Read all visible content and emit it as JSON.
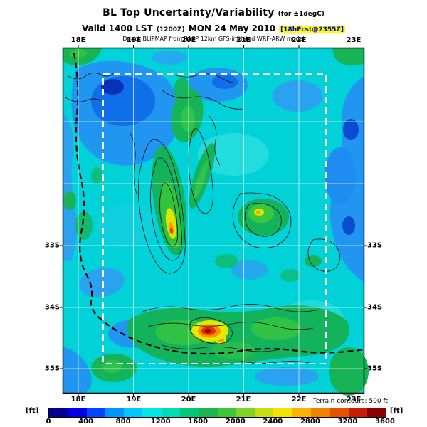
{
  "header": {
    "title": "BL Top Uncertainty/Variability",
    "title_note": "(for ±1degC)",
    "valid_prefix": "Valid 1400 LST",
    "valid_zulu": "(1200Z)",
    "valid_date": "MON 24 May 2010",
    "valid_tag": "[18hFcst@2355Z]",
    "model_line": "DrJack BLIPMAP from RASP 12km GFS-initiated WRF-ARW model"
  },
  "map": {
    "x_ticks_top": [
      "18E",
      "19E",
      "20E",
      "21E",
      "22E",
      "23E"
    ],
    "x_ticks_bottom": [
      "18E",
      "19E",
      "20E",
      "21E",
      "22E",
      "23E"
    ],
    "y_ticks_left": [
      "33S",
      "34S",
      "35S"
    ],
    "y_ticks_right": [
      "33S",
      "34S",
      "35S"
    ]
  },
  "colorbar": {
    "unit_left": "[ft]",
    "unit_right": "[ft]",
    "tick_labels": [
      "0",
      "400",
      "800",
      "1200",
      "1600",
      "2000",
      "2400",
      "2800",
      "3200",
      "3600"
    ],
    "colors": [
      "#000096",
      "#0000e6",
      "#0046ff",
      "#0096ff",
      "#00c8ff",
      "#00e6e6",
      "#00dcb4",
      "#00c878",
      "#1eb450",
      "#3cc83c",
      "#82d228",
      "#c8dc14",
      "#f0e400",
      "#fab400",
      "#f08200",
      "#e65000",
      "#c81e00",
      "#8c0000"
    ]
  },
  "footer": {
    "terrain_note": "Terrain contours: 500 ft"
  },
  "chart_data": {
    "type": "heatmap",
    "title": "BL Top Uncertainty/Variability (for ±1degC)",
    "subtitle": "Valid 1400 LST (1200Z) MON 24 May 2010 [18hFcst@2355Z]",
    "source_model": "DrJack BLIPMAP from RASP 12km GFS-initiated WRF-ARW model",
    "x_axis": {
      "label": "longitude",
      "ticks": [
        "18E",
        "19E",
        "20E",
        "21E",
        "22E",
        "23E"
      ]
    },
    "y_axis": {
      "label": "latitude",
      "ticks": [
        "33S",
        "34S",
        "35S"
      ]
    },
    "value_unit": "ft",
    "value_min": 0,
    "value_max": 3600,
    "colorbar_step_ft": 200,
    "colorbar_label_ticks": [
      0,
      400,
      800,
      1200,
      1600,
      2000,
      2400,
      2800,
      3200,
      3600
    ],
    "legend_position": "bottom",
    "grid": true,
    "overlays": [
      "terrain contours every 500 ft drawn as thin black lines",
      "coastline drawn as heavy dashed black line",
      "model sub-domain drawn as white dashed rectangle"
    ],
    "field_regions": [
      {
        "region": "majority of domain (ocean and flat interior)",
        "approx_value_ft": 800
      },
      {
        "region": "large patch in northwest quadrant, top-center patch, and band along east edge",
        "approx_value_ft": 400
      },
      {
        "region": "small cores inside northwest blue patch and along east edge",
        "approx_value_ft": 100
      },
      {
        "region": "mountain ridge areas: center-left N-S band, center-right blob, southern coastal band, map corners",
        "approx_value_ft": 1400
      },
      {
        "region": "elongated core of the center-left ridge",
        "approx_value_ft": 2200
      },
      {
        "region": "small yellow spot on center-right green blob",
        "approx_value_ft": 2100
      },
      {
        "region": "hot spot on the south-central coast (domain maximum, red/dark-red core)",
        "approx_value_ft": 3300
      }
    ]
  }
}
